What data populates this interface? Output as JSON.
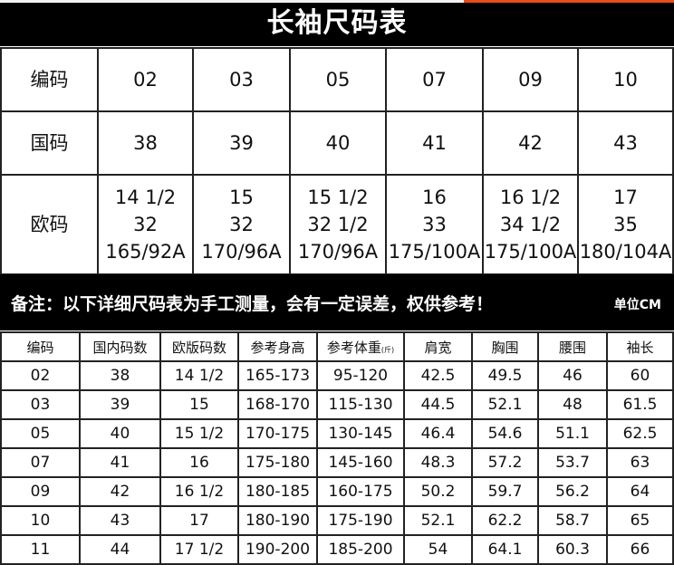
{
  "title": "长袖尺码表",
  "colors": {
    "accent": "#f04a10",
    "header_bg": "#000000"
  },
  "summary": {
    "rows": [
      {
        "label": "编码",
        "values": [
          "02",
          "03",
          "05",
          "07",
          "09",
          "10"
        ]
      },
      {
        "label": "国码",
        "values": [
          "38",
          "39",
          "40",
          "41",
          "42",
          "43"
        ]
      },
      {
        "label": "欧码",
        "values": [
          [
            "14 1/2",
            "32",
            "165/92A"
          ],
          [
            "15",
            "32",
            "170/96A"
          ],
          [
            "15 1/2",
            "32 1/2",
            "170/96A"
          ],
          [
            "16",
            "33",
            "175/100A"
          ],
          [
            "16 1/2",
            "34 1/2",
            "175/100A"
          ],
          [
            "17",
            "35",
            "180/104A"
          ]
        ]
      }
    ]
  },
  "notes": {
    "text": "备注：以下详细尺码表为手工测量，会有一定误差，权供参考！",
    "unit": "单位CM"
  },
  "detail": {
    "headers": [
      "编码",
      "国内码数",
      "欧版码数",
      "参考身高",
      "参考体重",
      "肩宽",
      "胸围",
      "腰围",
      "袖长"
    ],
    "weight_unit": "(斤)",
    "rows": [
      [
        "02",
        "38",
        "14 1/2",
        "165-173",
        "95-120",
        "42.5",
        "49.5",
        "46",
        "60"
      ],
      [
        "03",
        "39",
        "15",
        "168-170",
        "115-130",
        "44.5",
        "52.1",
        "48",
        "61.5"
      ],
      [
        "05",
        "40",
        "15 1/2",
        "170-175",
        "130-145",
        "46.4",
        "54.6",
        "51.1",
        "62.5"
      ],
      [
        "07",
        "41",
        "16",
        "175-180",
        "145-160",
        "48.3",
        "57.2",
        "53.7",
        "63"
      ],
      [
        "09",
        "42",
        "16 1/2",
        "180-185",
        "160-175",
        "50.2",
        "59.7",
        "56.2",
        "64"
      ],
      [
        "10",
        "43",
        "17",
        "180-190",
        "175-190",
        "52.1",
        "62.2",
        "58.7",
        "65"
      ],
      [
        "11",
        "44",
        "17 1/2",
        "190-200",
        "185-200",
        "54",
        "64.1",
        "60.3",
        "66"
      ]
    ]
  }
}
